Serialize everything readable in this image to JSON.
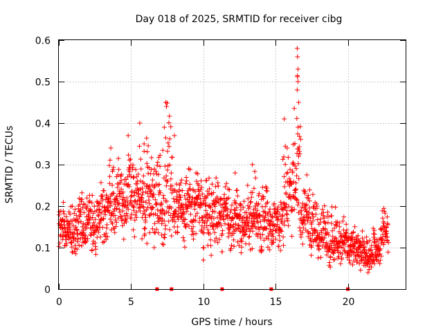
{
  "chart_data": {
    "type": "scatter",
    "title": "Day 018 of 2025, SRMTID for receiver cibg",
    "xlabel": "GPS time / hours",
    "ylabel": "SRMTID / TECUs",
    "xlim": [
      0,
      24
    ],
    "ylim": [
      0,
      0.6
    ],
    "xticks": [
      0,
      5,
      10,
      15,
      20
    ],
    "yticks": [
      0,
      0.1,
      0.2,
      0.3,
      0.4,
      0.5,
      0.6
    ],
    "xtick_labels": [
      "0",
      "5",
      "10",
      "15",
      "20"
    ],
    "ytick_labels": [
      "0",
      "0.1",
      "0.2",
      "0.3",
      "0.4",
      "0.5",
      "0.6"
    ],
    "grid": true,
    "marker": "plus",
    "color": "#ff0000",
    "series": [
      {
        "name": "SRMTID",
        "envelope": {
          "x": [
            0,
            0.5,
            1,
            1.5,
            2,
            2.5,
            3,
            3.5,
            4,
            4.5,
            5,
            5.5,
            6,
            6.5,
            7,
            7.5,
            8,
            8.5,
            9,
            9.5,
            10,
            10.5,
            11,
            11.5,
            12,
            12.5,
            13,
            13.5,
            14,
            14.5,
            15,
            15.5,
            16,
            16.5,
            17,
            17.5,
            18,
            18.5,
            19,
            19.5,
            20,
            20.5,
            21,
            21.5,
            22,
            22.5,
            22.8
          ],
          "low": [
            0.08,
            0.09,
            0.07,
            0.08,
            0.09,
            0.07,
            0.1,
            0.12,
            0.13,
            0.12,
            0.14,
            0.11,
            0.09,
            0.1,
            0.1,
            0.11,
            0.1,
            0.09,
            0.1,
            0.11,
            0.1,
            0.08,
            0.09,
            0.09,
            0.08,
            0.09,
            0.08,
            0.1,
            0.09,
            0.08,
            0.07,
            0.1,
            0.13,
            0.12,
            0.1,
            0.08,
            0.07,
            0.05,
            0.05,
            0.06,
            0.06,
            0.05,
            0.04,
            0.04,
            0.05,
            0.07,
            0.09
          ],
          "mid": [
            0.14,
            0.15,
            0.13,
            0.15,
            0.16,
            0.15,
            0.18,
            0.21,
            0.22,
            0.21,
            0.24,
            0.22,
            0.21,
            0.22,
            0.22,
            0.21,
            0.2,
            0.19,
            0.2,
            0.21,
            0.19,
            0.18,
            0.19,
            0.18,
            0.17,
            0.17,
            0.16,
            0.18,
            0.16,
            0.15,
            0.15,
            0.19,
            0.25,
            0.24,
            0.18,
            0.15,
            0.13,
            0.11,
            0.11,
            0.12,
            0.11,
            0.1,
            0.09,
            0.08,
            0.09,
            0.12,
            0.14
          ],
          "high": [
            0.19,
            0.22,
            0.2,
            0.23,
            0.24,
            0.24,
            0.26,
            0.31,
            0.32,
            0.3,
            0.36,
            0.34,
            0.4,
            0.3,
            0.39,
            0.45,
            0.37,
            0.29,
            0.29,
            0.28,
            0.27,
            0.28,
            0.27,
            0.28,
            0.25,
            0.24,
            0.25,
            0.3,
            0.26,
            0.24,
            0.2,
            0.41,
            0.35,
            0.58,
            0.3,
            0.26,
            0.23,
            0.2,
            0.2,
            0.19,
            0.16,
            0.15,
            0.14,
            0.13,
            0.17,
            0.2,
            0.19
          ]
        },
        "spikes": [
          {
            "x": 5.6,
            "y": 0.4
          },
          {
            "x": 7.3,
            "y": 0.39
          },
          {
            "x": 7.4,
            "y": 0.45
          },
          {
            "x": 7.45,
            "y": 0.44
          },
          {
            "x": 8.0,
            "y": 0.37
          },
          {
            "x": 3.6,
            "y": 0.34
          },
          {
            "x": 4.8,
            "y": 0.37
          },
          {
            "x": 5.9,
            "y": 0.35
          },
          {
            "x": 15.6,
            "y": 0.41
          },
          {
            "x": 15.8,
            "y": 0.34
          },
          {
            "x": 16.5,
            "y": 0.58
          },
          {
            "x": 16.52,
            "y": 0.56
          },
          {
            "x": 16.55,
            "y": 0.53
          },
          {
            "x": 16.55,
            "y": 0.5
          },
          {
            "x": 16.5,
            "y": 0.48
          },
          {
            "x": 16.6,
            "y": 0.45
          },
          {
            "x": 16.55,
            "y": 0.39
          },
          {
            "x": 16.6,
            "y": 0.32
          },
          {
            "x": 13.4,
            "y": 0.3
          },
          {
            "x": 10.0,
            "y": 0.07
          },
          {
            "x": 12.2,
            "y": 0.28
          },
          {
            "x": 6.1,
            "y": 0.11
          },
          {
            "x": 9.5,
            "y": 0.28
          }
        ],
        "baseline": [
          6.8,
          7.8,
          11.3,
          14.7,
          20.0
        ],
        "n_points": 1800
      }
    ]
  }
}
